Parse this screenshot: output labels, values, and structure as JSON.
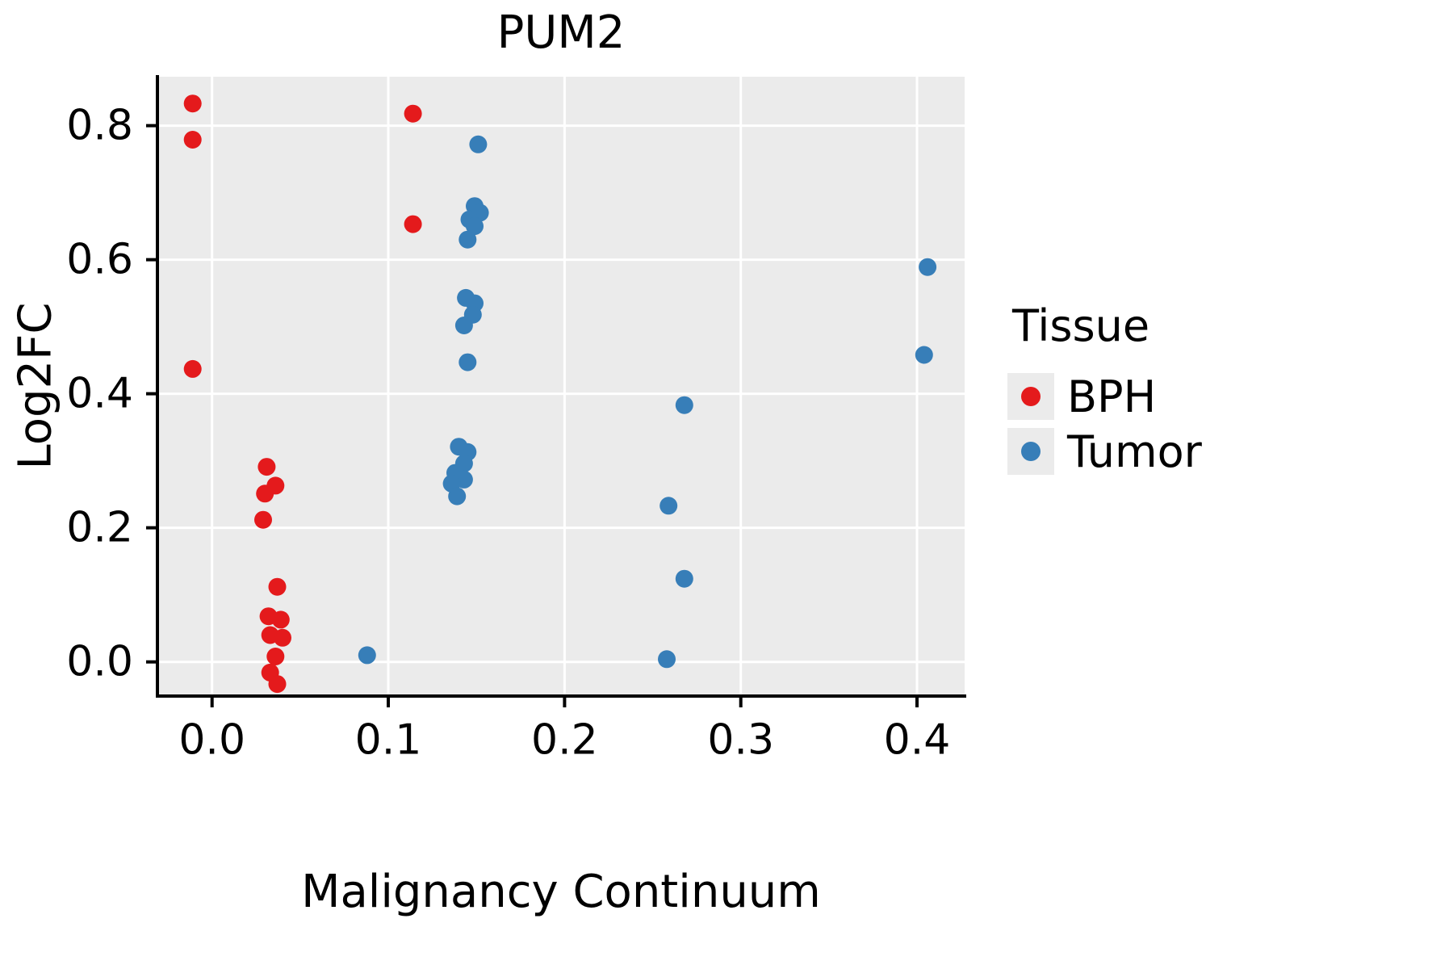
{
  "title": "PUM2",
  "axes": {
    "x_label": "Malignancy Continuum",
    "y_label": "Log2FC"
  },
  "legend": {
    "title": "Tissue",
    "entries": [
      {
        "label": "BPH",
        "color": "#E41A1C"
      },
      {
        "label": "Tumor",
        "color": "#377EB8"
      }
    ]
  },
  "chart_data": {
    "type": "scatter",
    "title": "PUM2",
    "xlabel": "Malignancy Continuum",
    "ylabel": "Log2FC",
    "xlim": [
      -0.031,
      0.427
    ],
    "ylim": [
      -0.051,
      0.873
    ],
    "x_ticks": [
      0.0,
      0.1,
      0.2,
      0.3,
      0.4
    ],
    "y_ticks": [
      0.0,
      0.2,
      0.4,
      0.6,
      0.8
    ],
    "grid": "major",
    "grid_color": "#ffffff",
    "panel_bg": "#EBEBEB",
    "axis_color": "#000000",
    "legend_position": "right",
    "point_radius": 11,
    "series": [
      {
        "name": "BPH",
        "color": "#E41A1C",
        "points": [
          [
            -0.011,
            0.833
          ],
          [
            -0.011,
            0.779
          ],
          [
            -0.011,
            0.437
          ],
          [
            0.114,
            0.818
          ],
          [
            0.114,
            0.653
          ],
          [
            0.031,
            0.291
          ],
          [
            0.036,
            0.263
          ],
          [
            0.03,
            0.251
          ],
          [
            0.029,
            0.212
          ],
          [
            0.037,
            0.112
          ],
          [
            0.032,
            0.068
          ],
          [
            0.039,
            0.063
          ],
          [
            0.033,
            0.04
          ],
          [
            0.04,
            0.036
          ],
          [
            0.036,
            0.008
          ],
          [
            0.033,
            -0.016
          ],
          [
            0.037,
            -0.033
          ]
        ]
      },
      {
        "name": "Tumor",
        "color": "#377EB8",
        "points": [
          [
            0.151,
            0.772
          ],
          [
            0.149,
            0.68
          ],
          [
            0.152,
            0.67
          ],
          [
            0.146,
            0.66
          ],
          [
            0.149,
            0.65
          ],
          [
            0.145,
            0.63
          ],
          [
            0.144,
            0.543
          ],
          [
            0.149,
            0.535
          ],
          [
            0.148,
            0.518
          ],
          [
            0.143,
            0.502
          ],
          [
            0.145,
            0.447
          ],
          [
            0.14,
            0.321
          ],
          [
            0.145,
            0.313
          ],
          [
            0.143,
            0.296
          ],
          [
            0.138,
            0.282
          ],
          [
            0.143,
            0.272
          ],
          [
            0.136,
            0.266
          ],
          [
            0.139,
            0.247
          ],
          [
            0.088,
            0.01
          ],
          [
            0.268,
            0.383
          ],
          [
            0.259,
            0.233
          ],
          [
            0.268,
            0.124
          ],
          [
            0.258,
            0.004
          ],
          [
            0.406,
            0.589
          ],
          [
            0.404,
            0.458
          ]
        ]
      }
    ]
  }
}
